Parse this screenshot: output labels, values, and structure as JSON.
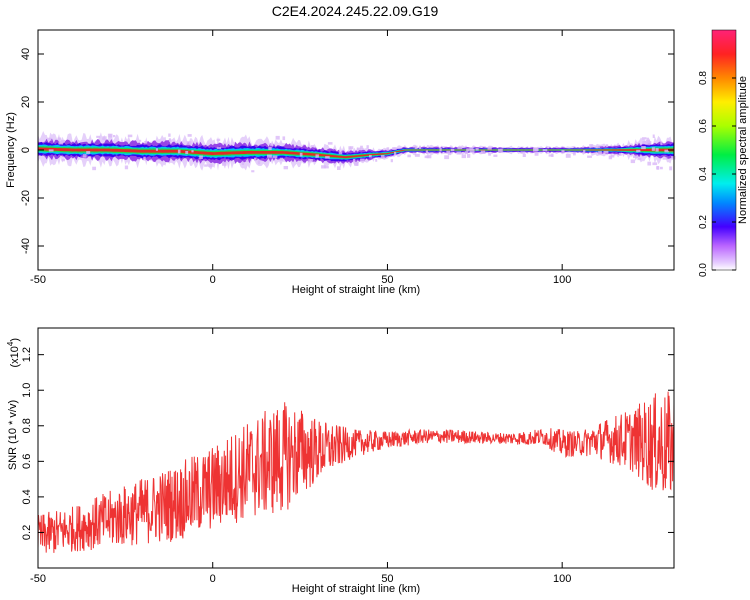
{
  "title": "C2E4.2024.245.22.09.G19",
  "colors": {
    "snr_line": "#ee3333",
    "axis": "#000000",
    "background": "#ffffff"
  },
  "chart_data": [
    {
      "type": "heatmap",
      "xlabel": "Height of straight line (km)",
      "ylabel": "Frequency (Hz)",
      "xlim": [
        -50,
        132
      ],
      "ylim": [
        -50,
        50
      ],
      "x_ticks": [
        -50,
        0,
        50,
        100
      ],
      "x_tick_labels": [
        "-50",
        "0",
        "50",
        "100"
      ],
      "y_ticks": [
        -40,
        -20,
        0,
        20,
        40
      ],
      "y_tick_labels": [
        "-40",
        "-20",
        "0",
        "20",
        "40"
      ],
      "colorbar": {
        "label": "Normalized spectral amplitude",
        "range": [
          0,
          1
        ],
        "ticks": [
          0.0,
          0.2,
          0.4,
          0.6,
          0.8
        ],
        "tick_labels": [
          "0.0",
          "0.2",
          "0.4",
          "0.6",
          "0.8"
        ]
      },
      "ridge": [
        [
          -50,
          0.5
        ],
        [
          -40,
          0.0
        ],
        [
          -30,
          0.0
        ],
        [
          -20,
          -0.5
        ],
        [
          -10,
          -0.5
        ],
        [
          0,
          -1.5
        ],
        [
          10,
          -1.0
        ],
        [
          20,
          -1.0
        ],
        [
          30,
          -2.0
        ],
        [
          38,
          -3.0
        ],
        [
          45,
          -2.0
        ],
        [
          50,
          -1.5
        ],
        [
          55,
          0.0
        ],
        [
          70,
          0.0
        ],
        [
          90,
          0.0
        ],
        [
          110,
          0.0
        ],
        [
          125,
          0.0
        ],
        [
          132,
          0.0
        ]
      ],
      "ridge_width": [
        [
          -50,
          5
        ],
        [
          -30,
          5
        ],
        [
          -10,
          5
        ],
        [
          10,
          5
        ],
        [
          30,
          4
        ],
        [
          45,
          2.5
        ],
        [
          55,
          1.5
        ],
        [
          100,
          1.2
        ],
        [
          115,
          2
        ],
        [
          125,
          4
        ],
        [
          132,
          5
        ]
      ]
    },
    {
      "type": "line",
      "xlabel": "Height of straight line (km)",
      "ylabel": "SNR (10 * v/v)",
      "y_multiplier": "(x10",
      "y_multiplier_exp": "4",
      "xlim": [
        -50,
        132
      ],
      "ylim": [
        0,
        1.35
      ],
      "x_ticks": [
        -50,
        0,
        50,
        100
      ],
      "x_tick_labels": [
        "-50",
        "0",
        "50",
        "100"
      ],
      "y_ticks": [
        0.2,
        0.4,
        0.6,
        0.8,
        1.0,
        1.2
      ],
      "y_tick_labels": [
        "0.2",
        "0.4",
        "0.6",
        "0.8",
        "1.0",
        "1.2"
      ],
      "series": [
        {
          "envelope": [
            [
              -50,
              0.18,
              0.12
            ],
            [
              -40,
              0.22,
              0.13
            ],
            [
              -30,
              0.27,
              0.16
            ],
            [
              -20,
              0.32,
              0.19
            ],
            [
              -10,
              0.37,
              0.22
            ],
            [
              0,
              0.45,
              0.24
            ],
            [
              10,
              0.55,
              0.28
            ],
            [
              20,
              0.62,
              0.32
            ],
            [
              25,
              0.65,
              0.26
            ],
            [
              30,
              0.66,
              0.18
            ],
            [
              40,
              0.7,
              0.08
            ],
            [
              50,
              0.72,
              0.05
            ],
            [
              60,
              0.74,
              0.04
            ],
            [
              70,
              0.74,
              0.04
            ],
            [
              80,
              0.73,
              0.03
            ],
            [
              90,
              0.73,
              0.04
            ],
            [
              95,
              0.74,
              0.05
            ],
            [
              100,
              0.7,
              0.08
            ],
            [
              105,
              0.7,
              0.07
            ],
            [
              110,
              0.72,
              0.1
            ],
            [
              120,
              0.72,
              0.18
            ],
            [
              126,
              0.7,
              0.28
            ],
            [
              132,
              0.68,
              0.32
            ]
          ]
        }
      ]
    }
  ]
}
